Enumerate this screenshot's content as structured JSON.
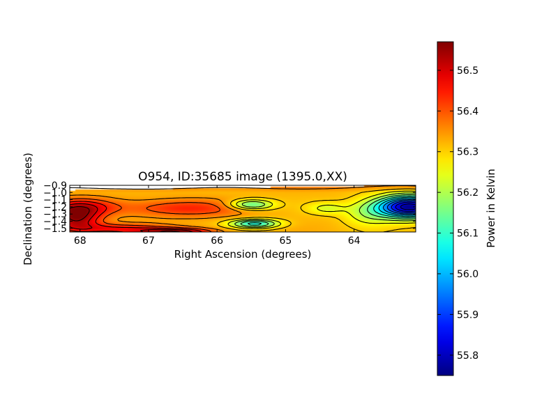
{
  "chart_data": {
    "type": "heatmap",
    "title": "O954, ID:35685 image (1395.0,XX)",
    "xlabel": "Right Ascension (degrees)",
    "ylabel": "Declination (degrees)",
    "xlim": [
      68.15,
      63.1
    ],
    "ylim": [
      -1.55,
      -0.9
    ],
    "x_ticks": [
      68,
      67,
      66,
      65,
      64
    ],
    "x_tick_labels": [
      "68",
      "67",
      "66",
      "65",
      "64"
    ],
    "y_ticks": [
      -0.9,
      -1.0,
      -1.1,
      -1.2,
      -1.3,
      -1.4,
      -1.5
    ],
    "y_tick_labels": [
      "−0.9",
      "−1.0",
      "−1.1",
      "−1.2",
      "−1.3",
      "−1.4",
      "−1.5"
    ],
    "colormap": "jet",
    "colorbar": {
      "label": "Power in Kelvin",
      "range": [
        55.75,
        56.57
      ],
      "ticks": [
        55.8,
        55.9,
        56.0,
        56.1,
        56.2,
        56.3,
        56.4,
        56.5
      ],
      "tick_labels": [
        "55.8",
        "55.9",
        "56.0",
        "56.1",
        "56.2",
        "56.3",
        "56.4",
        "56.5"
      ]
    },
    "background_level": 56.32,
    "features": [
      {
        "ra": 68.05,
        "dec": -1.36,
        "value": 56.54,
        "ra_width": 0.35,
        "dec_width": 0.16
      },
      {
        "ra": 67.95,
        "dec": -1.2,
        "value": 56.46,
        "ra_width": 0.5,
        "dec_width": 0.12
      },
      {
        "ra": 67.5,
        "dec": -1.5,
        "value": 56.45,
        "ra_width": 0.8,
        "dec_width": 0.07
      },
      {
        "ra": 66.6,
        "dec": -1.54,
        "value": 56.53,
        "ra_width": 0.55,
        "dec_width": 0.05
      },
      {
        "ra": 66.5,
        "dec": -1.22,
        "value": 56.44,
        "ra_width": 0.9,
        "dec_width": 0.12
      },
      {
        "ra": 65.5,
        "dec": -1.17,
        "value": 56.12,
        "ra_width": 0.32,
        "dec_width": 0.07
      },
      {
        "ra": 65.45,
        "dec": -1.43,
        "value": 56.08,
        "ra_width": 0.35,
        "dec_width": 0.06
      },
      {
        "ra": 64.4,
        "dec": -1.22,
        "value": 56.24,
        "ra_width": 0.28,
        "dec_width": 0.08
      },
      {
        "ra": 63.8,
        "dec": -1.28,
        "value": 56.22,
        "ra_width": 0.35,
        "dec_width": 0.18
      },
      {
        "ra": 63.2,
        "dec": -1.2,
        "value": 55.76,
        "ra_width": 0.45,
        "dec_width": 0.15
      }
    ]
  }
}
